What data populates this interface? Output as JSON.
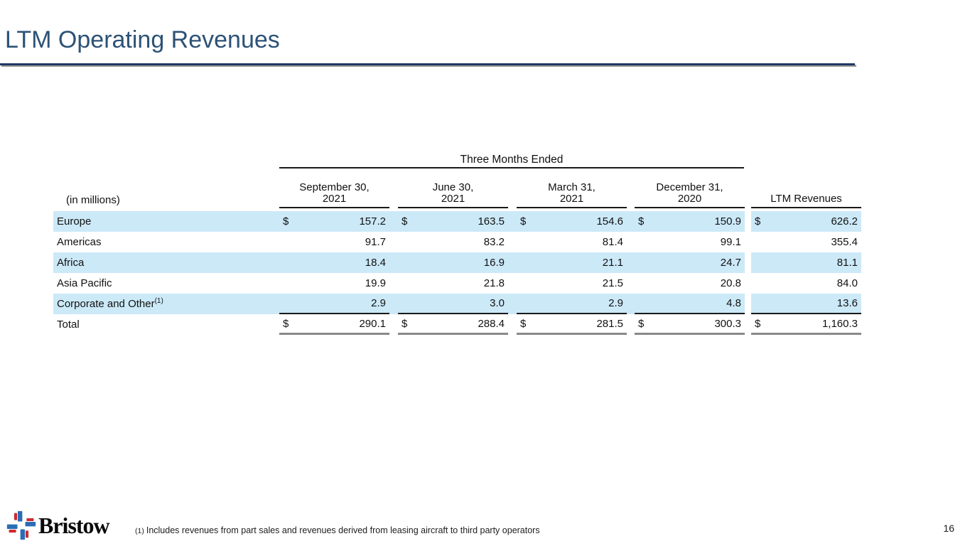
{
  "slide": {
    "title": "LTM Operating Revenues",
    "page_number": "16"
  },
  "table": {
    "units_label": "(in millions)",
    "group_header": "Three Months Ended",
    "date_columns": [
      {
        "line1": "September 30,",
        "line2": "2021"
      },
      {
        "line1": "June 30,",
        "line2": "2021"
      },
      {
        "line1": "March 31,",
        "line2": "2021"
      },
      {
        "line1": "December 31,",
        "line2": "2020"
      }
    ],
    "ltm_header": "LTM Revenues",
    "currency_symbol": "$",
    "rows": [
      {
        "label": "Europe",
        "footnote_ref": "",
        "show_dollar": true,
        "shaded": true,
        "underline": false,
        "is_total": false,
        "values": [
          "157.2",
          "163.5",
          "154.6",
          "150.9",
          "626.2"
        ]
      },
      {
        "label": "Americas",
        "footnote_ref": "",
        "show_dollar": false,
        "shaded": false,
        "underline": false,
        "is_total": false,
        "values": [
          "91.7",
          "83.2",
          "81.4",
          "99.1",
          "355.4"
        ]
      },
      {
        "label": "Africa",
        "footnote_ref": "",
        "show_dollar": false,
        "shaded": true,
        "underline": false,
        "is_total": false,
        "values": [
          "18.4",
          "16.9",
          "21.1",
          "24.7",
          "81.1"
        ]
      },
      {
        "label": "Asia Pacific",
        "footnote_ref": "",
        "show_dollar": false,
        "shaded": false,
        "underline": false,
        "is_total": false,
        "values": [
          "19.9",
          "21.8",
          "21.5",
          "20.8",
          "84.0"
        ]
      },
      {
        "label": "Corporate and Other",
        "footnote_ref": "(1)",
        "show_dollar": false,
        "shaded": true,
        "underline": true,
        "is_total": false,
        "values": [
          "2.9",
          "3.0",
          "2.9",
          "4.8",
          "13.6"
        ]
      },
      {
        "label": "Total",
        "footnote_ref": "",
        "show_dollar": true,
        "shaded": false,
        "underline": false,
        "is_total": true,
        "values": [
          "290.1",
          "288.4",
          "281.5",
          "300.3",
          "1,160.3"
        ]
      }
    ]
  },
  "footer": {
    "logo_text": "Bristow",
    "footnote_marker": "(1)",
    "footnote_text": "Includes revenues from part sales and revenues derived from leasing aircraft to third party operators"
  },
  "colors": {
    "stripe": "#cce9f8",
    "title_text": "#2d5276",
    "rule": "#1f3864",
    "rule_shadow": "#9b9b9b",
    "total_rule": "#8a8a8a",
    "logo_blue": "#2a6db5",
    "logo_red": "#cc2b31"
  }
}
